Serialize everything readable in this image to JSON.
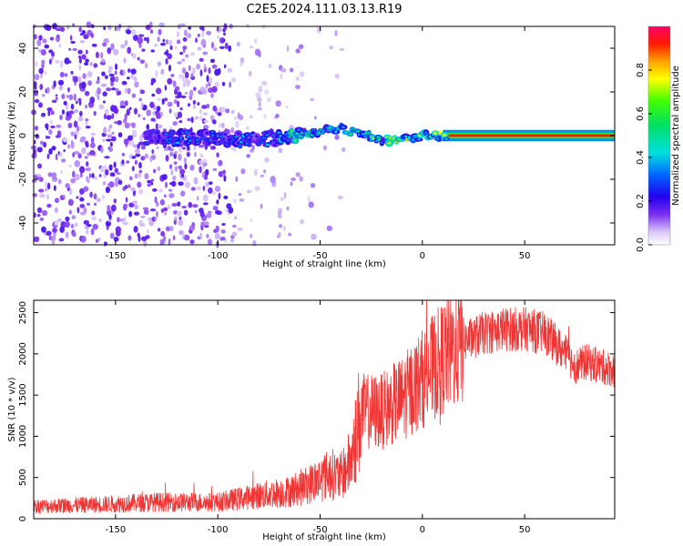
{
  "title": "C2E5.2024.111.03.13.R19",
  "chart_data": [
    {
      "type": "heatmap",
      "name": "spectrogram",
      "xlabel": "Height of straight line (km)",
      "ylabel": "Frequency (Hz)",
      "xlim": [
        -190,
        94
      ],
      "ylim": [
        -50,
        50
      ],
      "xticks": [
        -150,
        -100,
        -50,
        0,
        50
      ],
      "yticks": [
        -40,
        -20,
        0,
        20,
        40
      ],
      "colorbar": {
        "label": "Normalized spectral amplitude",
        "range": [
          0,
          1
        ],
        "ticks": [
          0.0,
          0.2,
          0.4,
          0.6,
          0.8
        ]
      },
      "signal_track": {
        "height_km": [
          -130,
          -100,
          -85,
          -70,
          -60,
          -50,
          -40,
          -30,
          -20,
          -10,
          0,
          10,
          94
        ],
        "frequency_hz": [
          -1,
          -1,
          -2,
          -1,
          1,
          2,
          3,
          1,
          -2,
          -2,
          0,
          0,
          0
        ]
      }
    },
    {
      "type": "line",
      "name": "snr",
      "xlabel": "Height of straight line (km)",
      "ylabel": "SNR (10 * v/v)",
      "xlim": [
        -190,
        94
      ],
      "ylim": [
        0,
        2650
      ],
      "xticks": [
        -150,
        -100,
        -50,
        0,
        50
      ],
      "yticks": [
        0,
        500,
        1000,
        1500,
        2000,
        2500
      ],
      "color": "#f03535",
      "envelope": {
        "x": [
          -190,
          -160,
          -130,
          -100,
          -80,
          -65,
          -55,
          -45,
          -40,
          -35,
          -30,
          -20,
          -10,
          0,
          10,
          20,
          30,
          40,
          50,
          60,
          70,
          75,
          80,
          94
        ],
        "y": [
          150,
          170,
          200,
          200,
          280,
          330,
          420,
          550,
          500,
          700,
          1300,
          1300,
          1450,
          1700,
          1950,
          2150,
          2250,
          2300,
          2300,
          2250,
          2000,
          1850,
          1900,
          1800
        ]
      }
    }
  ]
}
